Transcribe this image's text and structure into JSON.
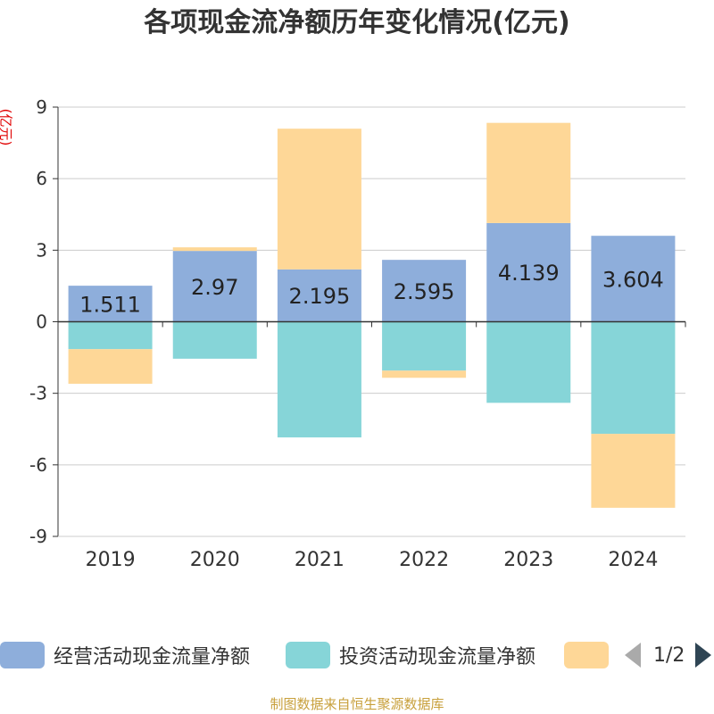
{
  "title": "各项现金流净额历年变化情况(亿元)",
  "unit_label": "(亿元)",
  "footer": "制图数据来自恒生聚源数据库",
  "legend": {
    "items": [
      {
        "label": "经营活动现金流量净额",
        "color": "#8eaedb"
      },
      {
        "label": "投资活动现金流量净额",
        "color": "#86d5d8"
      },
      {
        "label": "",
        "color": "#fed797"
      }
    ],
    "page": "1/2"
  },
  "chart_data": {
    "type": "bar",
    "stacked": true,
    "categories": [
      "2019",
      "2020",
      "2021",
      "2022",
      "2023",
      "2024"
    ],
    "ylim": [
      -9,
      9
    ],
    "yticks": [
      9,
      6,
      3,
      0,
      -3,
      -6,
      -9
    ],
    "grid": true,
    "legend_position": "bottom",
    "series": [
      {
        "name": "经营活动现金流量净额",
        "color": "#8eaedb",
        "values": [
          1.511,
          2.97,
          2.195,
          2.595,
          4.139,
          3.604
        ],
        "labels": [
          "1.511",
          "2.97",
          "2.195",
          "2.595",
          "4.139",
          "3.604"
        ]
      },
      {
        "name": "投资活动现金流量净额",
        "color": "#86d5d8",
        "values": [
          -1.15,
          -1.55,
          -4.85,
          -2.05,
          -3.4,
          -4.7
        ]
      },
      {
        "color": "#fed797",
        "values": [
          -1.45,
          0.15,
          5.9,
          -0.3,
          4.2,
          -3.1
        ]
      }
    ]
  }
}
